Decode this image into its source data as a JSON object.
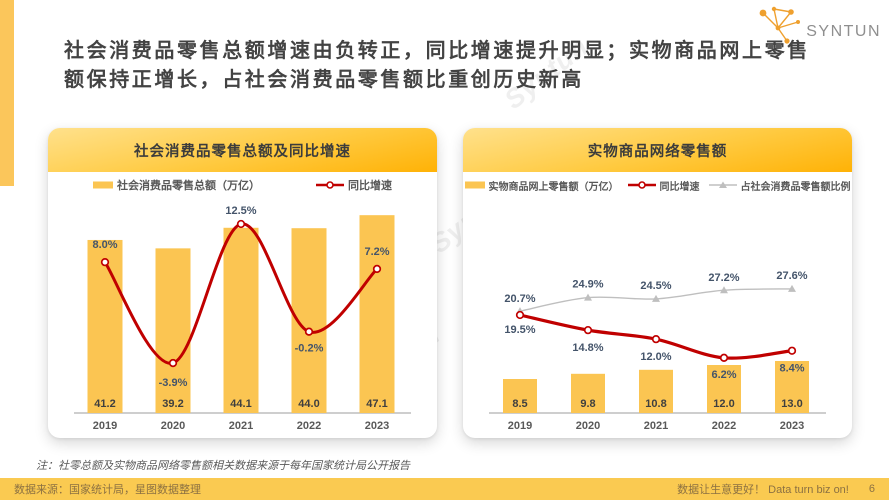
{
  "page": {
    "title_line1": "社会消费品零售总额增速由负转正，同比增速提升明显；实物商品网上零售",
    "title_line2": "额保持正增长，占社会消费品零售额比重创历史新高",
    "logo_text": "SYNTUN",
    "watermark": "Syntun"
  },
  "chart_data": [
    {
      "type": "bar+line",
      "title": "社会消费品零售总额及同比增速",
      "categories": [
        "2019",
        "2020",
        "2021",
        "2022",
        "2023"
      ],
      "series": [
        {
          "name": "社会消费品零售总额（万亿）",
          "type": "bar",
          "values": [
            41.2,
            39.2,
            44.1,
            44.0,
            47.1
          ],
          "labels": [
            "41.2",
            "39.2",
            "44.1",
            "44.0",
            "47.1"
          ],
          "color": "#FBC552"
        },
        {
          "name": "同比增速",
          "type": "line",
          "marker": "circle",
          "values": [
            8.0,
            -3.9,
            12.5,
            -0.2,
            7.2
          ],
          "labels": [
            "8.0%",
            "-3.9%",
            "12.5%",
            "-0.2%",
            "7.2%"
          ],
          "color": "#C00000"
        }
      ],
      "legend_position": "top",
      "grid": false
    },
    {
      "type": "bar+line",
      "title": "实物商品网络零售额",
      "categories": [
        "2019",
        "2020",
        "2021",
        "2022",
        "2023"
      ],
      "series": [
        {
          "name": "实物商品网上零售额（万亿）",
          "type": "bar",
          "values": [
            8.5,
            9.8,
            10.8,
            12.0,
            13.0
          ],
          "labels": [
            "8.5",
            "9.8",
            "10.8",
            "12.0",
            "13.0"
          ],
          "color": "#FBC552"
        },
        {
          "name": "同比增速",
          "type": "line",
          "marker": "circle",
          "values": [
            19.5,
            14.8,
            12.0,
            6.2,
            8.4
          ],
          "labels": [
            "19.5%",
            "14.8%",
            "12.0%",
            "6.2%",
            "8.4%"
          ],
          "color": "#C00000"
        },
        {
          "name": "占社会消费品零售额比例",
          "type": "line",
          "marker": "triangle",
          "values": [
            20.7,
            24.9,
            24.5,
            27.2,
            27.6
          ],
          "labels": [
            "20.7%",
            "24.9%",
            "24.5%",
            "27.2%",
            "27.6%"
          ],
          "color": "#BFBFBF"
        }
      ],
      "legend_position": "top",
      "grid": false
    }
  ],
  "note": "注：社零总额及实物商品网络零售额相关数据来源于每年国家统计局公开报告",
  "footer": {
    "source": "数据来源：国家统计局，星图数据整理",
    "slogan": "数据让生意更好！ Data turn biz on!",
    "page": "6"
  },
  "colors": {
    "accent_yellow": "#FBC65B",
    "bar_yellow": "#FBC552",
    "line_red": "#C00000",
    "line_gray": "#BFBFBF",
    "label_blue_gray": "#44546A",
    "footer_bg": "#FACA51"
  }
}
